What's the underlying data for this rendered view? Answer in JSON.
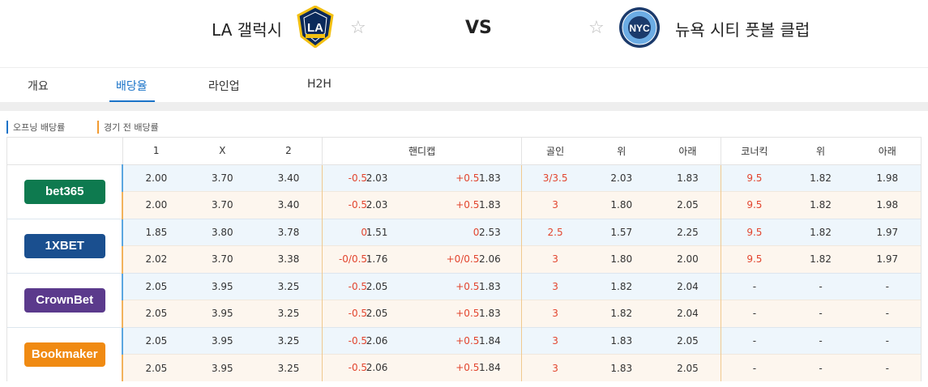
{
  "match": {
    "home_team": "LA 갤럭시",
    "away_team": "뉴욕 시티 풋볼 클럽",
    "vs": "VS"
  },
  "tabs": [
    "개요",
    "배당율",
    "라인업",
    "H2H"
  ],
  "active_tab": "배당율",
  "legend": {
    "opening": "오프닝 배당률",
    "pre_match": "경기 전 배당률"
  },
  "headers": [
    "1",
    "X",
    "2",
    "핸디캡",
    "골인",
    "위",
    "아래",
    "코너킥",
    "위",
    "아래"
  ],
  "bookmakers": [
    {
      "name": "bet365",
      "color": "#0e7a4f",
      "rows": [
        [
          "2.00",
          "3.70",
          "3.40",
          "-0.5",
          "2.03",
          "+0.5",
          "1.83",
          "3/3.5",
          "2.03",
          "1.83",
          "9.5",
          "1.82",
          "1.98"
        ],
        [
          "2.00",
          "3.70",
          "3.40",
          "-0.5",
          "2.03",
          "+0.5",
          "1.83",
          "3",
          "1.80",
          "2.05",
          "9.5",
          "1.82",
          "1.98"
        ]
      ]
    },
    {
      "name": "1XBET",
      "color": "#1a4f8f",
      "rows": [
        [
          "1.85",
          "3.80",
          "3.78",
          "0",
          "1.51",
          "0",
          "2.53",
          "2.5",
          "1.57",
          "2.25",
          "9.5",
          "1.82",
          "1.97"
        ],
        [
          "2.02",
          "3.70",
          "3.38",
          "-0/0.5",
          "1.76",
          "+0/0.5",
          "2.06",
          "3",
          "1.80",
          "2.00",
          "9.5",
          "1.82",
          "1.97"
        ]
      ]
    },
    {
      "name": "CrownBet",
      "color": "#5b3a8c",
      "rows": [
        [
          "2.05",
          "3.95",
          "3.25",
          "-0.5",
          "2.05",
          "+0.5",
          "1.83",
          "3",
          "1.82",
          "2.04",
          "-",
          "-",
          "-"
        ],
        [
          "2.05",
          "3.95",
          "3.25",
          "-0.5",
          "2.05",
          "+0.5",
          "1.83",
          "3",
          "1.82",
          "2.04",
          "-",
          "-",
          "-"
        ]
      ]
    },
    {
      "name": "Bookmaker",
      "color": "#f08a12",
      "rows": [
        [
          "2.05",
          "3.95",
          "3.25",
          "-0.5",
          "2.06",
          "+0.5",
          "1.84",
          "3",
          "1.83",
          "2.05",
          "-",
          "-",
          "-"
        ],
        [
          "2.05",
          "3.95",
          "3.25",
          "-0.5",
          "2.06",
          "+0.5",
          "1.84",
          "3",
          "1.83",
          "2.05",
          "-",
          "-",
          "-"
        ]
      ]
    }
  ]
}
